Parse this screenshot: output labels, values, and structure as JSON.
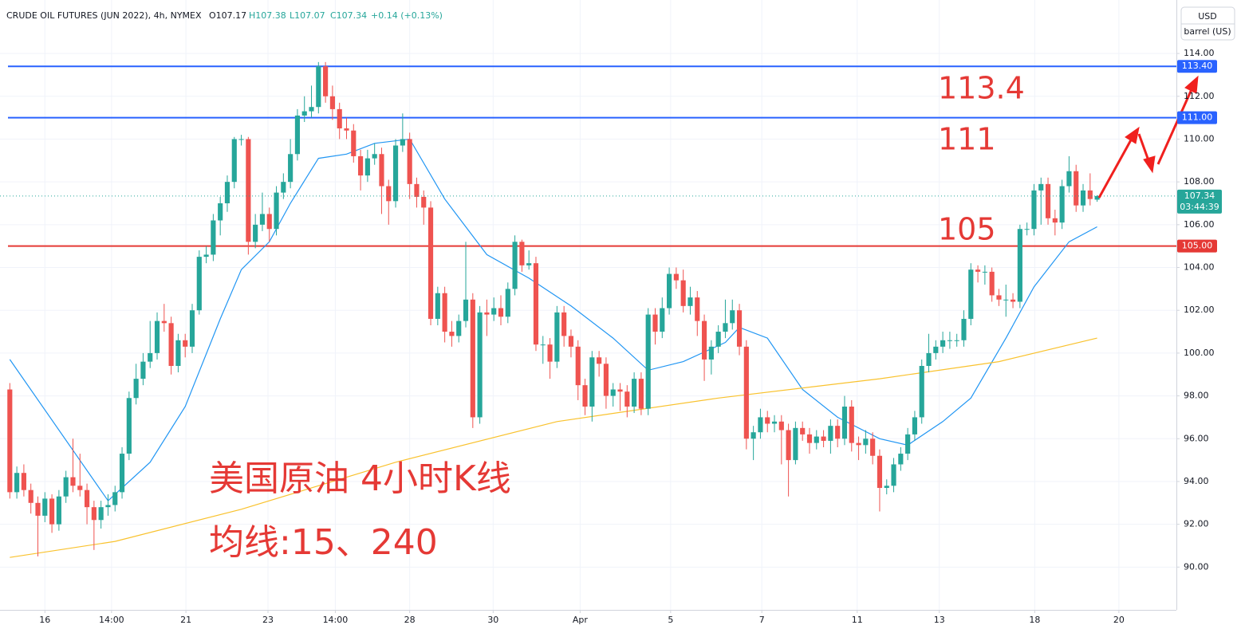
{
  "chart_data": {
    "type": "candlestick",
    "title": "CRUDE OIL FUTURES (JUN 2022), 4h, NYMEX",
    "ohlc_labels": [
      "O107.17",
      "H107.38",
      "L107.07",
      "C107.34",
      "+0.14 (+0.13%)"
    ],
    "currency": "USD",
    "unit": "barrel (US)",
    "up_color": "#26a69a",
    "down_color": "#ef5350",
    "grid": true,
    "xlim": [
      -1.4,
      166.3
    ],
    "ylim": [
      88.0,
      116.5
    ],
    "yticks": [
      {
        "value": 90,
        "label": "90.00"
      },
      {
        "value": 92,
        "label": "92.00"
      },
      {
        "value": 94,
        "label": "94.00"
      },
      {
        "value": 96,
        "label": "96.00"
      },
      {
        "value": 98,
        "label": "98.00"
      },
      {
        "value": 100,
        "label": "100.00"
      },
      {
        "value": 102,
        "label": "102.00"
      },
      {
        "value": 104,
        "label": "104.00"
      },
      {
        "value": 106,
        "label": "106.00"
      },
      {
        "value": 108,
        "label": "108.00"
      },
      {
        "value": 110,
        "label": "110.00"
      },
      {
        "value": 112,
        "label": "112.00"
      },
      {
        "value": 114,
        "label": "114.00"
      }
    ],
    "xticks": [
      {
        "value": 5,
        "label": "16"
      },
      {
        "value": 14.5,
        "label": "14:00"
      },
      {
        "value": 25.1,
        "label": "21"
      },
      {
        "value": 36.8,
        "label": "23"
      },
      {
        "value": 46.4,
        "label": "14:00"
      },
      {
        "value": 57,
        "label": "28"
      },
      {
        "value": 68.9,
        "label": "30"
      },
      {
        "value": 81.3,
        "label": "Apr"
      },
      {
        "value": 94.2,
        "label": "5"
      },
      {
        "value": 107.2,
        "label": "7"
      },
      {
        "value": 120.8,
        "label": "11"
      },
      {
        "value": 132.5,
        "label": "13"
      },
      {
        "value": 146.1,
        "label": "18"
      },
      {
        "value": 158.1,
        "label": "20"
      }
    ],
    "open": [
      98.3,
      93.5,
      94.4,
      93.6,
      93.0,
      92.4,
      93.2,
      92.0,
      93.3,
      94.2,
      93.8,
      93.6,
      92.8,
      92.2,
      92.8,
      92.9,
      93.5,
      95.3,
      97.9,
      98.8,
      99.6,
      100.0,
      101.5,
      101.4,
      99.4,
      100.6,
      100.3,
      102.0,
      104.5,
      104.6,
      106.2,
      107.0,
      108.0,
      110.0,
      110.0,
      105.2,
      106.0,
      106.5,
      105.8,
      107.5,
      108.0,
      109.3,
      111.1,
      111.3,
      111.5,
      113.4,
      112.0,
      111.4,
      110.5,
      110.4,
      109.2,
      108.3,
      109.1,
      109.3,
      107.8,
      107.1,
      109.7,
      110.0,
      107.9,
      107.3,
      106.8,
      101.6,
      102.8,
      101.0,
      100.8,
      101.5,
      102.5,
      97.0,
      101.9,
      101.8,
      102.1,
      101.7,
      103.0,
      105.2,
      104.1,
      104.2,
      100.4,
      100.4,
      99.6,
      101.9,
      100.8,
      100.3,
      98.5,
      97.5,
      99.8,
      99.5,
      98.0,
      98.3,
      98.2,
      97.5,
      98.8,
      97.4,
      101.8,
      101.0,
      102.1,
      103.7,
      103.4,
      102.2,
      102.6,
      101.5,
      99.7,
      100.3,
      101.0,
      101.4,
      102.0,
      100.3,
      96.0,
      96.3,
      97.0,
      96.7,
      96.8,
      96.4,
      95.0,
      96.5,
      96.2,
      95.8,
      96.1,
      95.9,
      96.6,
      96.0,
      97.5,
      95.8,
      95.7,
      96.0,
      95.2,
      93.7,
      93.8,
      94.8,
      95.3,
      96.2,
      97.0,
      99.4,
      100.0,
      100.3,
      100.6,
      100.6,
      100.6,
      101.6,
      103.9,
      103.8,
      103.8,
      102.7,
      102.5,
      102.5,
      102.4,
      105.8,
      105.8,
      107.6,
      107.9,
      106.3,
      106.1,
      107.8,
      108.5,
      106.9,
      107.6,
      107.17
    ],
    "high": [
      98.6,
      94.7,
      94.8,
      93.9,
      93.3,
      93.5,
      93.4,
      93.6,
      94.5,
      96.0,
      95.3,
      93.9,
      93.1,
      93.1,
      93.4,
      93.8,
      95.6,
      98.2,
      99.5,
      100.0,
      101.5,
      101.9,
      102.3,
      101.7,
      100.9,
      100.9,
      102.3,
      104.8,
      105.0,
      106.5,
      107.3,
      108.3,
      110.1,
      110.2,
      110.1,
      106.5,
      107.5,
      106.8,
      107.8,
      108.4,
      110.0,
      111.4,
      112.0,
      112.5,
      113.6,
      113.6,
      112.5,
      111.7,
      111.0,
      110.7,
      109.5,
      109.5,
      109.8,
      109.6,
      108.1,
      110.0,
      111.2,
      110.3,
      108.2,
      107.6,
      107.1,
      103.1,
      103.1,
      101.5,
      101.8,
      105.2,
      102.8,
      102.2,
      102.5,
      102.6,
      102.7,
      103.3,
      105.5,
      105.3,
      104.8,
      104.5,
      100.8,
      100.7,
      102.2,
      102.2,
      101.1,
      100.6,
      98.8,
      100.1,
      100.1,
      99.8,
      98.6,
      98.6,
      98.5,
      99.1,
      99.1,
      102.1,
      102.1,
      102.6,
      104.0,
      104.0,
      103.9,
      103.1,
      102.9,
      101.8,
      100.6,
      101.3,
      102.5,
      102.5,
      102.3,
      100.6,
      96.6,
      97.4,
      97.3,
      97.1,
      97.1,
      96.7,
      96.8,
      96.8,
      96.5,
      96.4,
      96.4,
      96.9,
      96.9,
      98.0,
      97.8,
      96.1,
      96.4,
      96.3,
      95.5,
      94.1,
      95.1,
      95.6,
      96.5,
      97.3,
      99.7,
      100.9,
      100.6,
      101.0,
      101.0,
      100.9,
      102.0,
      104.2,
      104.1,
      104.1,
      104.0,
      103.0,
      103.2,
      102.8,
      106.0,
      106.1,
      107.9,
      108.2,
      108.2,
      106.7,
      108.1,
      109.2,
      108.8,
      107.9,
      108.4,
      107.38
    ],
    "low": [
      93.2,
      93.2,
      93.3,
      92.5,
      90.5,
      92.1,
      91.6,
      91.7,
      93.0,
      93.5,
      93.3,
      92.0,
      90.8,
      91.8,
      92.4,
      92.6,
      93.2,
      95.0,
      97.6,
      98.5,
      99.3,
      99.7,
      101.0,
      99.0,
      99.1,
      99.8,
      100.0,
      101.8,
      104.2,
      104.3,
      105.5,
      106.6,
      107.7,
      109.7,
      104.6,
      104.9,
      105.7,
      105.2,
      105.5,
      107.2,
      107.7,
      109.0,
      110.8,
      111.0,
      111.2,
      111.7,
      110.9,
      110.0,
      110.0,
      108.9,
      107.6,
      108.0,
      108.8,
      106.5,
      106.0,
      106.8,
      109.4,
      107.2,
      106.8,
      106.0,
      101.3,
      101.3,
      100.5,
      100.3,
      100.5,
      101.2,
      96.5,
      96.7,
      100.8,
      101.5,
      101.3,
      101.4,
      102.7,
      103.8,
      103.9,
      100.1,
      99.5,
      98.8,
      99.3,
      100.3,
      99.8,
      97.8,
      97.1,
      96.8,
      98.9,
      97.4,
      97.5,
      97.3,
      97.0,
      97.2,
      97.1,
      97.1,
      100.4,
      100.7,
      101.8,
      103.0,
      101.9,
      101.8,
      100.8,
      98.7,
      99.0,
      100.0,
      100.7,
      101.1,
      99.9,
      95.5,
      95.0,
      96.0,
      96.3,
      96.3,
      94.8,
      93.3,
      94.8,
      95.9,
      95.3,
      95.5,
      95.6,
      95.3,
      95.6,
      95.7,
      95.4,
      95.0,
      95.3,
      94.8,
      92.6,
      93.4,
      93.5,
      94.5,
      95.0,
      95.9,
      96.7,
      99.1,
      99.7,
      100.0,
      100.2,
      100.3,
      100.3,
      101.3,
      103.3,
      103.2,
      102.4,
      102.2,
      101.7,
      102.1,
      102.1,
      105.5,
      105.5,
      106.0,
      106.0,
      105.5,
      105.8,
      107.5,
      106.6,
      106.6,
      106.9,
      107.07
    ],
    "close": [
      93.5,
      94.4,
      93.6,
      93.0,
      92.4,
      93.2,
      92.0,
      93.3,
      94.2,
      93.8,
      93.6,
      92.8,
      92.2,
      92.8,
      92.9,
      93.5,
      95.3,
      97.9,
      98.8,
      99.6,
      100.0,
      101.5,
      101.4,
      99.4,
      100.6,
      100.3,
      102.0,
      104.5,
      104.6,
      106.2,
      107.0,
      108.0,
      110.0,
      110.0,
      105.2,
      106.0,
      106.5,
      105.8,
      107.5,
      108.0,
      109.3,
      111.1,
      111.3,
      111.5,
      113.4,
      112.0,
      111.4,
      110.5,
      110.4,
      109.2,
      108.3,
      109.1,
      109.3,
      107.8,
      107.1,
      109.7,
      110.0,
      107.9,
      107.3,
      106.8,
      101.6,
      102.8,
      101.0,
      100.8,
      101.5,
      102.5,
      97.0,
      101.9,
      101.8,
      102.1,
      101.7,
      103.0,
      105.2,
      104.1,
      104.2,
      100.4,
      100.4,
      99.6,
      101.9,
      100.8,
      100.3,
      98.5,
      97.5,
      99.8,
      99.5,
      98.0,
      98.3,
      98.2,
      97.5,
      98.8,
      97.4,
      101.8,
      101.0,
      102.1,
      103.7,
      103.4,
      102.2,
      102.6,
      101.5,
      99.7,
      100.3,
      101.0,
      101.4,
      102.0,
      100.3,
      96.0,
      96.3,
      97.0,
      96.7,
      96.8,
      96.4,
      95.0,
      96.5,
      96.2,
      95.8,
      96.1,
      95.9,
      96.6,
      96.0,
      97.5,
      95.8,
      95.7,
      96.0,
      95.2,
      93.7,
      93.8,
      94.8,
      95.3,
      96.2,
      97.0,
      99.4,
      100.0,
      100.3,
      100.6,
      100.6,
      100.6,
      101.6,
      103.9,
      103.8,
      103.8,
      102.7,
      102.5,
      102.5,
      102.4,
      105.8,
      105.8,
      107.6,
      107.9,
      106.3,
      106.1,
      107.8,
      108.5,
      106.9,
      107.6,
      107.2,
      107.34
    ],
    "lines": [
      {
        "color": "#2196f3",
        "x": [
          0,
          14,
          20,
          25,
          30,
          33,
          37,
          40,
          44,
          48,
          52,
          57,
          62,
          68,
          74,
          80,
          86,
          91,
          96,
          102,
          104,
          108,
          113,
          118,
          124,
          128,
          133,
          137,
          142,
          146,
          151,
          155
        ],
        "values": [
          99.7,
          93.1,
          94.9,
          97.5,
          101.6,
          103.9,
          105.2,
          107.0,
          109.1,
          109.3,
          109.8,
          110.0,
          107.2,
          104.6,
          103.5,
          102.2,
          100.7,
          99.2,
          99.6,
          100.5,
          101.2,
          100.7,
          98.3,
          97.0,
          96.0,
          95.7,
          96.8,
          97.9,
          100.7,
          103.1,
          105.2,
          105.9
        ]
      },
      {
        "color": "#f9c22e",
        "x": [
          0,
          15,
          33,
          55,
          78,
          101,
          124,
          141,
          155
        ],
        "values": [
          90.45,
          91.2,
          92.7,
          94.9,
          96.8,
          97.9,
          98.8,
          99.6,
          100.7
        ]
      }
    ],
    "hlines": [
      {
        "value": 113.4,
        "label": "113.40",
        "color": "#2962ff"
      },
      {
        "value": 111,
        "label": "111.00",
        "color": "#2962ff"
      },
      {
        "value": 105,
        "label": "105.00",
        "color": "#e53935"
      }
    ],
    "last_price": {
      "value": 107.34,
      "label": "107.34",
      "countdown": "03:44:39",
      "color": "#26a69a"
    },
    "annotations": [
      "113.4",
      "111",
      "105",
      "美国原油 4小时K线",
      "均线:15、240"
    ],
    "annotation_color": "#e53935"
  }
}
